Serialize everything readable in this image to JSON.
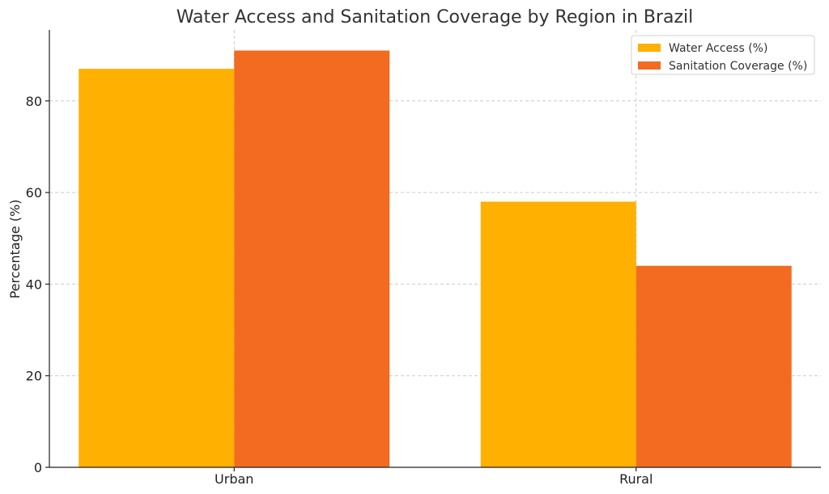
{
  "chart_data": {
    "type": "bar",
    "title": "Water Access and Sanitation Coverage by Region in Brazil",
    "xlabel": "",
    "ylabel": "Percentage (%)",
    "categories": [
      "Urban",
      "Rural"
    ],
    "series": [
      {
        "name": "Water Access (%)",
        "values": [
          87,
          58
        ],
        "color": "#FFB000"
      },
      {
        "name": "Sanitation Coverage (%)",
        "values": [
          91,
          44
        ],
        "color": "#F26B21"
      }
    ],
    "ylim": [
      0,
      95.5
    ],
    "yticks": [
      0,
      20,
      40,
      60,
      80
    ],
    "grid": true,
    "legend_position": "top-right"
  }
}
